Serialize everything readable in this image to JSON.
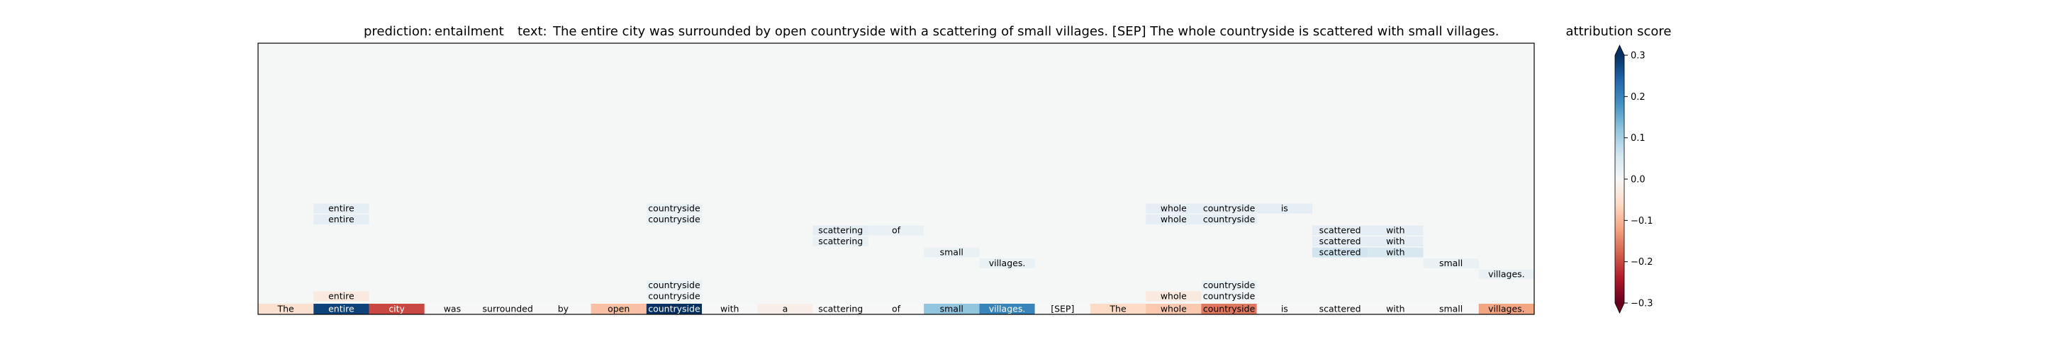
{
  "chart_data": {
    "type": "heatmap",
    "title": {
      "prediction_label": "prediction:",
      "prediction_value": "entailment",
      "text_label": "text:",
      "text_value": "The entire city was surrounded by open countryside with a scattering of small villages. [SEP] The whole countryside is scattered with small villages."
    },
    "tokens": [
      "The",
      "entire",
      "city",
      "was",
      "surrounded",
      "by",
      "open",
      "countryside",
      "with",
      "a",
      "scattering",
      "of",
      "small",
      "villages.",
      "[SEP]",
      "The",
      "whole",
      "countryside",
      "is",
      "scattered",
      "with",
      "small",
      "villages."
    ],
    "token_scores": [
      -0.05,
      0.28,
      -0.2,
      0.0,
      0.0,
      0.0,
      -0.09,
      0.33,
      0.0,
      -0.02,
      0.0,
      0.0,
      0.12,
      0.2,
      0.0,
      -0.06,
      -0.08,
      -0.16,
      0.0,
      0.0,
      0.0,
      0.0,
      -0.12
    ],
    "layers": [
      {
        "row": 1,
        "cells": [
          {
            "token_index": 1,
            "score": -0.03
          },
          {
            "token_index": 7,
            "score": 0.01
          },
          {
            "token_index": 16,
            "score": -0.03
          },
          {
            "token_index": 17,
            "score": 0.01
          }
        ]
      },
      {
        "row": 2,
        "cells": [
          {
            "token_index": 7,
            "score": 0.02
          },
          {
            "token_index": 17,
            "score": 0.02
          }
        ]
      },
      {
        "row": 3,
        "cells": [
          {
            "token_index": 22,
            "score": 0.02
          }
        ]
      },
      {
        "row": 4,
        "cells": [
          {
            "token_index": 13,
            "score": 0.02
          },
          {
            "token_index": 21,
            "score": 0.02
          }
        ]
      },
      {
        "row": 5,
        "cells": [
          {
            "token_index": 12,
            "score": 0.02
          },
          {
            "token_index": 19,
            "score": 0.06
          },
          {
            "token_index": 20,
            "score": 0.05
          }
        ]
      },
      {
        "row": 6,
        "cells": [
          {
            "token_index": 10,
            "score": 0.02
          },
          {
            "token_index": 19,
            "score": 0.03
          },
          {
            "token_index": 20,
            "score": 0.03
          }
        ]
      },
      {
        "row": 7,
        "cells": [
          {
            "token_index": 10,
            "score": 0.03
          },
          {
            "token_index": 11,
            "score": 0.02
          },
          {
            "token_index": 19,
            "score": 0.03
          },
          {
            "token_index": 20,
            "score": 0.03
          }
        ]
      },
      {
        "row": 8,
        "cells": [
          {
            "token_index": 1,
            "score": 0.03
          },
          {
            "token_index": 7,
            "score": 0.02
          },
          {
            "token_index": 16,
            "score": 0.03
          },
          {
            "token_index": 17,
            "score": 0.03
          }
        ]
      },
      {
        "row": 9,
        "cells": [
          {
            "token_index": 1,
            "score": 0.03
          },
          {
            "token_index": 7,
            "score": 0.02
          },
          {
            "token_index": 16,
            "score": 0.03
          },
          {
            "token_index": 17,
            "score": 0.03
          },
          {
            "token_index": 18,
            "score": 0.03
          }
        ]
      }
    ],
    "colorbar": {
      "title": "attribution score",
      "min": -0.3,
      "max": 0.3,
      "ticks": [
        0.3,
        0.2,
        0.1,
        0.0,
        -0.1,
        -0.2,
        -0.3
      ],
      "tick_labels": [
        "0.3",
        "0.2",
        "0.1",
        "0.0",
        "−0.1",
        "−0.2",
        "−0.3"
      ],
      "colormap": "RdBu",
      "extend": "both"
    },
    "colors": {
      "plot_background": "#f5f6f6",
      "frame": "#000000"
    }
  }
}
